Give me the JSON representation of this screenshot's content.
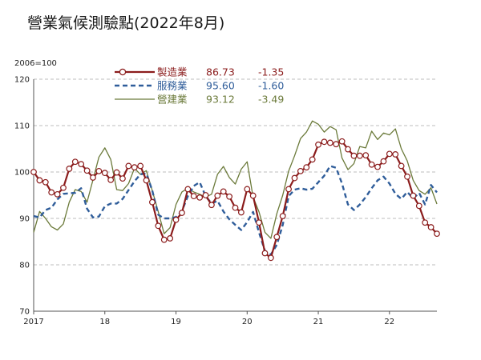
{
  "title": "營業氣候測驗點(2022年8月)",
  "chart_data": {
    "type": "line",
    "title": "營業氣候測驗點(2022年8月)",
    "unit_label": "2006=100",
    "ylim": [
      70,
      120
    ],
    "yticks": [
      70,
      80,
      90,
      100,
      110,
      120
    ],
    "grid": true,
    "x_start": 2017.0,
    "x_end": 2022.667,
    "xticks": [
      {
        "value": 2017,
        "label": "2017"
      },
      {
        "value": 2018,
        "label": "18"
      },
      {
        "value": 2019,
        "label": "19"
      },
      {
        "value": 2020,
        "label": "20"
      },
      {
        "value": 2021,
        "label": "21"
      },
      {
        "value": 2022,
        "label": "22"
      }
    ],
    "legend_position": "top-center",
    "series": [
      {
        "name": "製造業",
        "latest": "86.73",
        "change": "-1.35",
        "color": "#8b1c1c",
        "style": "line-marker",
        "values": [
          100,
          98.2,
          97.8,
          95.6,
          95.2,
          96.6,
          100.7,
          102.2,
          101.7,
          100.3,
          98.8,
          100.2,
          99.8,
          98.3,
          99.9,
          98.6,
          101.3,
          101.0,
          101.3,
          98.2,
          93.5,
          88.4,
          85.4,
          85.7,
          89.7,
          91.2,
          96.3,
          94.8,
          94.5,
          95.0,
          92.9,
          94.9,
          95.8,
          94.7,
          92.3,
          91.3,
          96.3,
          94.9,
          89.1,
          82.5,
          81.5,
          86.0,
          90.5,
          96.3,
          98.7,
          100.2,
          101.0,
          102.7,
          105.9,
          106.5,
          106.3,
          106.0,
          106.6,
          104.9,
          103.5,
          103.5,
          103.6,
          101.6,
          101.1,
          102.3,
          103.9,
          103.8,
          101.3,
          99.0,
          94.9,
          92.7,
          89.1,
          88.1,
          86.7
        ]
      },
      {
        "name": "服務業",
        "latest": "95.60",
        "change": "-1.60",
        "color": "#2f5d9a",
        "style": "dashed",
        "values": [
          90.5,
          90.2,
          91.8,
          92.3,
          94.1,
          95.3,
          95.4,
          95.5,
          96.5,
          92.1,
          90.2,
          90.4,
          92.6,
          93.2,
          93.2,
          94.2,
          96.1,
          98.0,
          99.5,
          99.7,
          96.0,
          90.8,
          90.0,
          90.0,
          90.3,
          91.6,
          94.8,
          97.0,
          97.8,
          94.8,
          93.2,
          93.8,
          91.5,
          89.8,
          88.6,
          87.5,
          89.2,
          91.4,
          87.0,
          83.0,
          82.2,
          84.3,
          88.6,
          94.8,
          96.2,
          96.5,
          96.2,
          96.4,
          97.8,
          99.2,
          101.3,
          100.9,
          97.5,
          93.0,
          91.8,
          93.0,
          94.6,
          96.5,
          98.2,
          99.0,
          97.5,
          95.3,
          94.2,
          95.7,
          94.3,
          95.5,
          93.0,
          97.2,
          95.6
        ]
      },
      {
        "name": "營建業",
        "latest": "93.12",
        "change": "-3.49",
        "color": "#6b7a3a",
        "style": "line",
        "values": [
          87.0,
          91.5,
          90.0,
          88.2,
          87.5,
          88.8,
          93.5,
          96.2,
          95.8,
          93.5,
          98.3,
          103.2,
          105.2,
          102.7,
          96.2,
          96.0,
          97.5,
          100.8,
          99.5,
          100.3,
          96.0,
          91.5,
          86.7,
          88.0,
          93.0,
          95.7,
          96.5,
          95.7,
          95.2,
          94.6,
          95.2,
          99.5,
          101.2,
          98.8,
          97.4,
          100.6,
          102.2,
          94.6,
          91.4,
          87.0,
          85.7,
          91.0,
          95.0,
          100.2,
          103.5,
          107.2,
          108.6,
          111.0,
          110.3,
          108.6,
          109.8,
          109.1,
          103.0,
          100.5,
          101.8,
          105.5,
          105.2,
          108.8,
          107.0,
          108.4,
          108.0,
          109.3,
          105.0,
          102.4,
          98.2,
          96.0,
          95.2,
          96.6,
          93.1
        ]
      }
    ]
  }
}
